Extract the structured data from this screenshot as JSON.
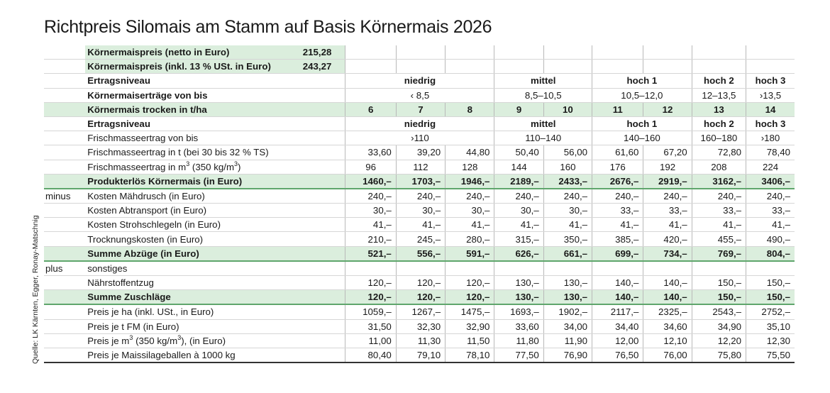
{
  "title": "Richtpreis Silomais am Stamm auf Basis Körnermais 2026",
  "source": "Quelle: LK Kärnten, Egger, Ronay-Matschnig",
  "price_rows": [
    {
      "label": "Körnermaispreis (netto in Euro)",
      "value": "215,28"
    },
    {
      "label": "Körnermaispreis (inkl. 13 % USt. in Euro)",
      "value": "243,27"
    }
  ],
  "block1": {
    "niveau_label": "Ertragsniveau",
    "niveaus": [
      "niedrig",
      "mittel",
      "hoch 1",
      "hoch 2",
      "hoch 3"
    ],
    "ertrag_label": "Körnermaiserträge von bis",
    "ertraege": [
      "‹ 8,5",
      "8,5–10,5",
      "10,5–12,0",
      "12–13,5",
      "›13,5"
    ],
    "trocken_label": "Körnermais trocken in t/ha",
    "trocken": [
      "6",
      "7",
      "8",
      "9",
      "10",
      "11",
      "12",
      "13",
      "14"
    ]
  },
  "block2": {
    "niveau_label": "Ertragsniveau",
    "niveaus": [
      "niedrig",
      "mittel",
      "hoch 1",
      "hoch 2",
      "hoch 3"
    ],
    "fm_label": "Frischmasseertrag von bis",
    "fm_ranges": [
      "›110",
      "110–140",
      "140–160",
      "160–180",
      "›180"
    ],
    "fm_t_label": "Frischmasseertrag in t (bei 30 bis 32 % TS)",
    "fm_t": [
      "33,60",
      "39,20",
      "44,80",
      "50,40",
      "56,00",
      "61,60",
      "67,20",
      "72,80",
      "78,40"
    ],
    "fm_m3_label_a": "Frischmasseertrag in m",
    "fm_m3_sup": "3",
    "fm_m3_label_b": " (350 kg/m",
    "fm_m3_label_c": ")",
    "fm_m3": [
      "96",
      "112",
      "128",
      "144",
      "160",
      "176",
      "192",
      "208",
      "224"
    ]
  },
  "erloes": {
    "label": "Produkterlös Körnermais (in Euro)",
    "values": [
      "1460,–",
      "1703,–",
      "1946,–",
      "2189,–",
      "2433,–",
      "2676,–",
      "2919,–",
      "3162,–",
      "3406,–"
    ]
  },
  "minus": {
    "label": "minus",
    "rows": [
      {
        "label": "Kosten Mähdrusch (in Euro)",
        "values": [
          "240,–",
          "240,–",
          "240,–",
          "240,–",
          "240,–",
          "240,–",
          "240,–",
          "240,–",
          "240,–"
        ]
      },
      {
        "label": "Kosten Abtransport (in Euro)",
        "values": [
          "30,–",
          "30,–",
          "30,–",
          "30,–",
          "30,–",
          "33,–",
          "33,–",
          "33,–",
          "33,–"
        ]
      },
      {
        "label": "Kosten Strohschlegeln (in Euro)",
        "values": [
          "41,–",
          "41,–",
          "41,–",
          "41,–",
          "41,–",
          "41,–",
          "41,–",
          "41,–",
          "41,–"
        ]
      },
      {
        "label": "Trocknungskosten (in Euro)",
        "values": [
          "210,–",
          "245,–",
          "280,–",
          "315,–",
          "350,–",
          "385,–",
          "420,–",
          "455,–",
          "490,–"
        ]
      }
    ],
    "sum_label": "Summe Abzüge (in Euro)",
    "sum": [
      "521,–",
      "556,–",
      "591,–",
      "626,–",
      "661,–",
      "699,–",
      "734,–",
      "769,–",
      "804,–"
    ]
  },
  "plus": {
    "label": "plus",
    "sonstiges": "sonstiges",
    "naehr_label": "Nährstoffentzug",
    "naehr": [
      "120,–",
      "120,–",
      "120,–",
      "130,–",
      "130,–",
      "140,–",
      "140,–",
      "150,–",
      "150,–"
    ],
    "sum_label": "Summe Zuschläge",
    "sum": [
      "120,–",
      "120,–",
      "120,–",
      "130,–",
      "130,–",
      "140,–",
      "140,–",
      "150,–",
      "150,–"
    ]
  },
  "prices": {
    "ha_label": "Preis je ha (inkl. USt., in Euro)",
    "ha": [
      "1059,–",
      "1267,–",
      "1475,–",
      "1693,–",
      "1902,–",
      "2117,–",
      "2325,–",
      "2543,–",
      "2752,–"
    ],
    "tfm_label": "Preis je t FM (in Euro)",
    "tfm": [
      "31,50",
      "32,30",
      "32,90",
      "33,60",
      "34,00",
      "34,40",
      "34,60",
      "34,90",
      "35,10"
    ],
    "m3_label_a": "Preis je m",
    "m3_sup": "3",
    "m3_label_b": " (350 kg/m",
    "m3_label_c": "), (in Euro)",
    "m3": [
      "11,00",
      "11,30",
      "11,50",
      "11,80",
      "11,90",
      "12,00",
      "12,10",
      "12,20",
      "12,30"
    ],
    "ballen_label": "Preis je Maissilageballen à 1000 kg",
    "ballen": [
      "80,40",
      "79,10",
      "78,10",
      "77,50",
      "76,90",
      "76,50",
      "76,00",
      "75,80",
      "75,50"
    ]
  },
  "colors": {
    "accent_green": "#dbeedd",
    "line_green": "#5fa66c"
  }
}
